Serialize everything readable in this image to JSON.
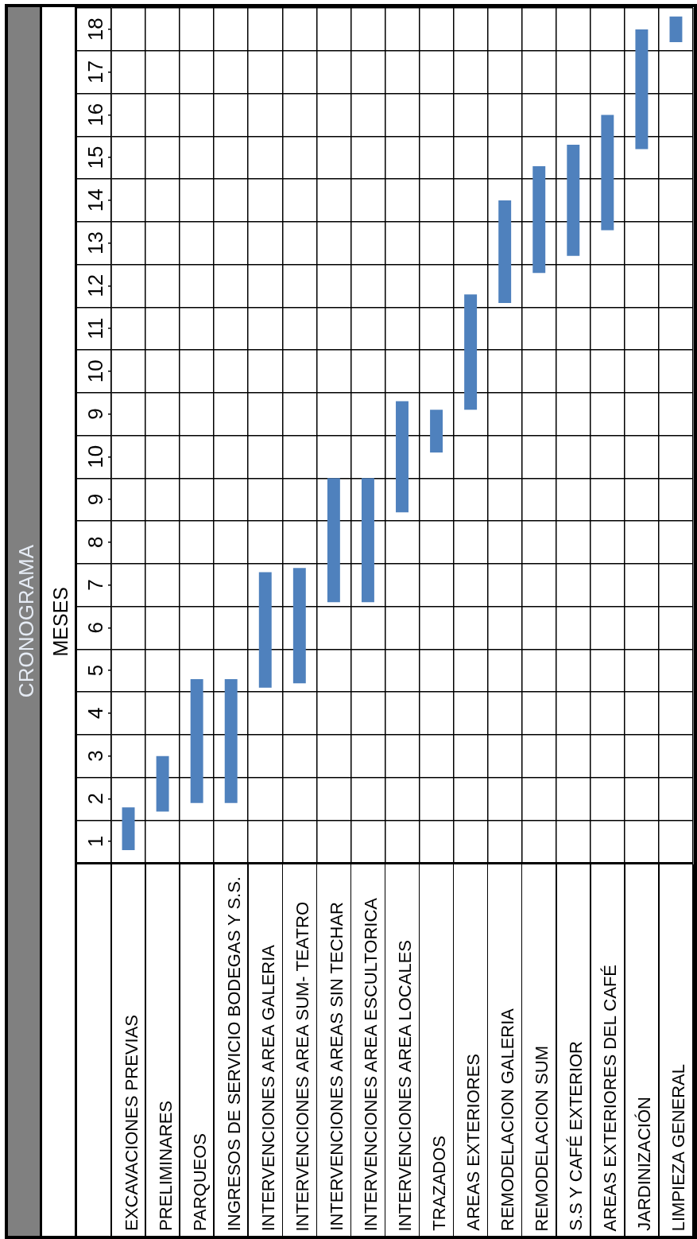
{
  "chart_data": {
    "type": "bar",
    "title": "CRONOGRAMA",
    "y2label": "MESES",
    "categories": [
      "EXCAVACIONES PREVIAS",
      "PRELIMINARES",
      "PARQUEOS",
      "INGRESOS DE SERVICIO BODEGAS Y S.S.",
      "INTERVENCIONES AREA GALERIA",
      "INTERVENCIONES AREA SUM- TEATRO",
      "INTERVENCIONES AREAS SIN TECHAR",
      "INTERVENCIONES AREA ESCULTORICA",
      "INTERVENCIONES AREA LOCALES",
      "TRAZADOS",
      "AREAS EXTERIORES",
      "REMODELACION GALERIA",
      "REMODELACION SUM",
      "S.S Y CAFÉ EXTERIOR",
      "AREAS EXTERIORES DEL CAFÉ",
      "JARDINIZACIÓN",
      "LIMPIEZA GENERAL"
    ],
    "base": [
      0.8,
      1.7,
      1.9,
      1.9,
      4.6,
      4.7,
      6.6,
      6.6,
      8.7,
      10.1,
      11.1,
      13.6,
      14.3,
      14.7,
      15.3,
      17.2,
      19.7
    ],
    "values": [
      1.0,
      1.3,
      2.9,
      2.9,
      2.7,
      2.7,
      2.9,
      2.9,
      2.6,
      1.0,
      2.7,
      2.4,
      2.5,
      2.6,
      2.7,
      2.8,
      0.6
    ],
    "color": "#4f81bd",
    "ylim": [
      0.5,
      20.5
    ],
    "yticks": [
      {
        "value": 0.5,
        "label": null
      },
      1,
      {
        "value": 1.5,
        "label": null
      },
      2,
      {
        "value": 2.5,
        "label": null
      },
      3,
      {
        "value": 3.5,
        "label": null
      },
      4,
      {
        "value": 4.5,
        "label": null
      },
      5,
      {
        "value": 5.5,
        "label": null
      },
      6,
      {
        "value": 6.5,
        "label": null
      },
      7,
      {
        "value": 7.5,
        "label": null
      },
      8,
      {
        "value": 8.5,
        "label": null
      },
      9,
      {
        "value": 9.5,
        "label": null
      },
      10,
      {
        "value": 10.5,
        "label": null
      },
      {
        "value": 11.5,
        "label": null
      },
      {
        "value": 12.5,
        "label": null
      },
      {
        "value": 13.5,
        "label": null
      },
      {
        "value": 14.5,
        "label": null
      },
      {
        "value": 15.5,
        "label": null
      },
      {
        "value": 16.5,
        "label": null
      },
      {
        "value": 17.5,
        "label": null
      },
      {
        "value": 18.5,
        "label": null
      },
      {
        "value": 19.5,
        "label": null
      },
      {
        "value": 20.5,
        "label": null
      }
    ],
    "y2lim": [
      -1.5,
      18.5
    ],
    "y2ticks": [
      9,
      10,
      11,
      12,
      13,
      14,
      15,
      16,
      17,
      18
    ],
    "grid": true
  }
}
